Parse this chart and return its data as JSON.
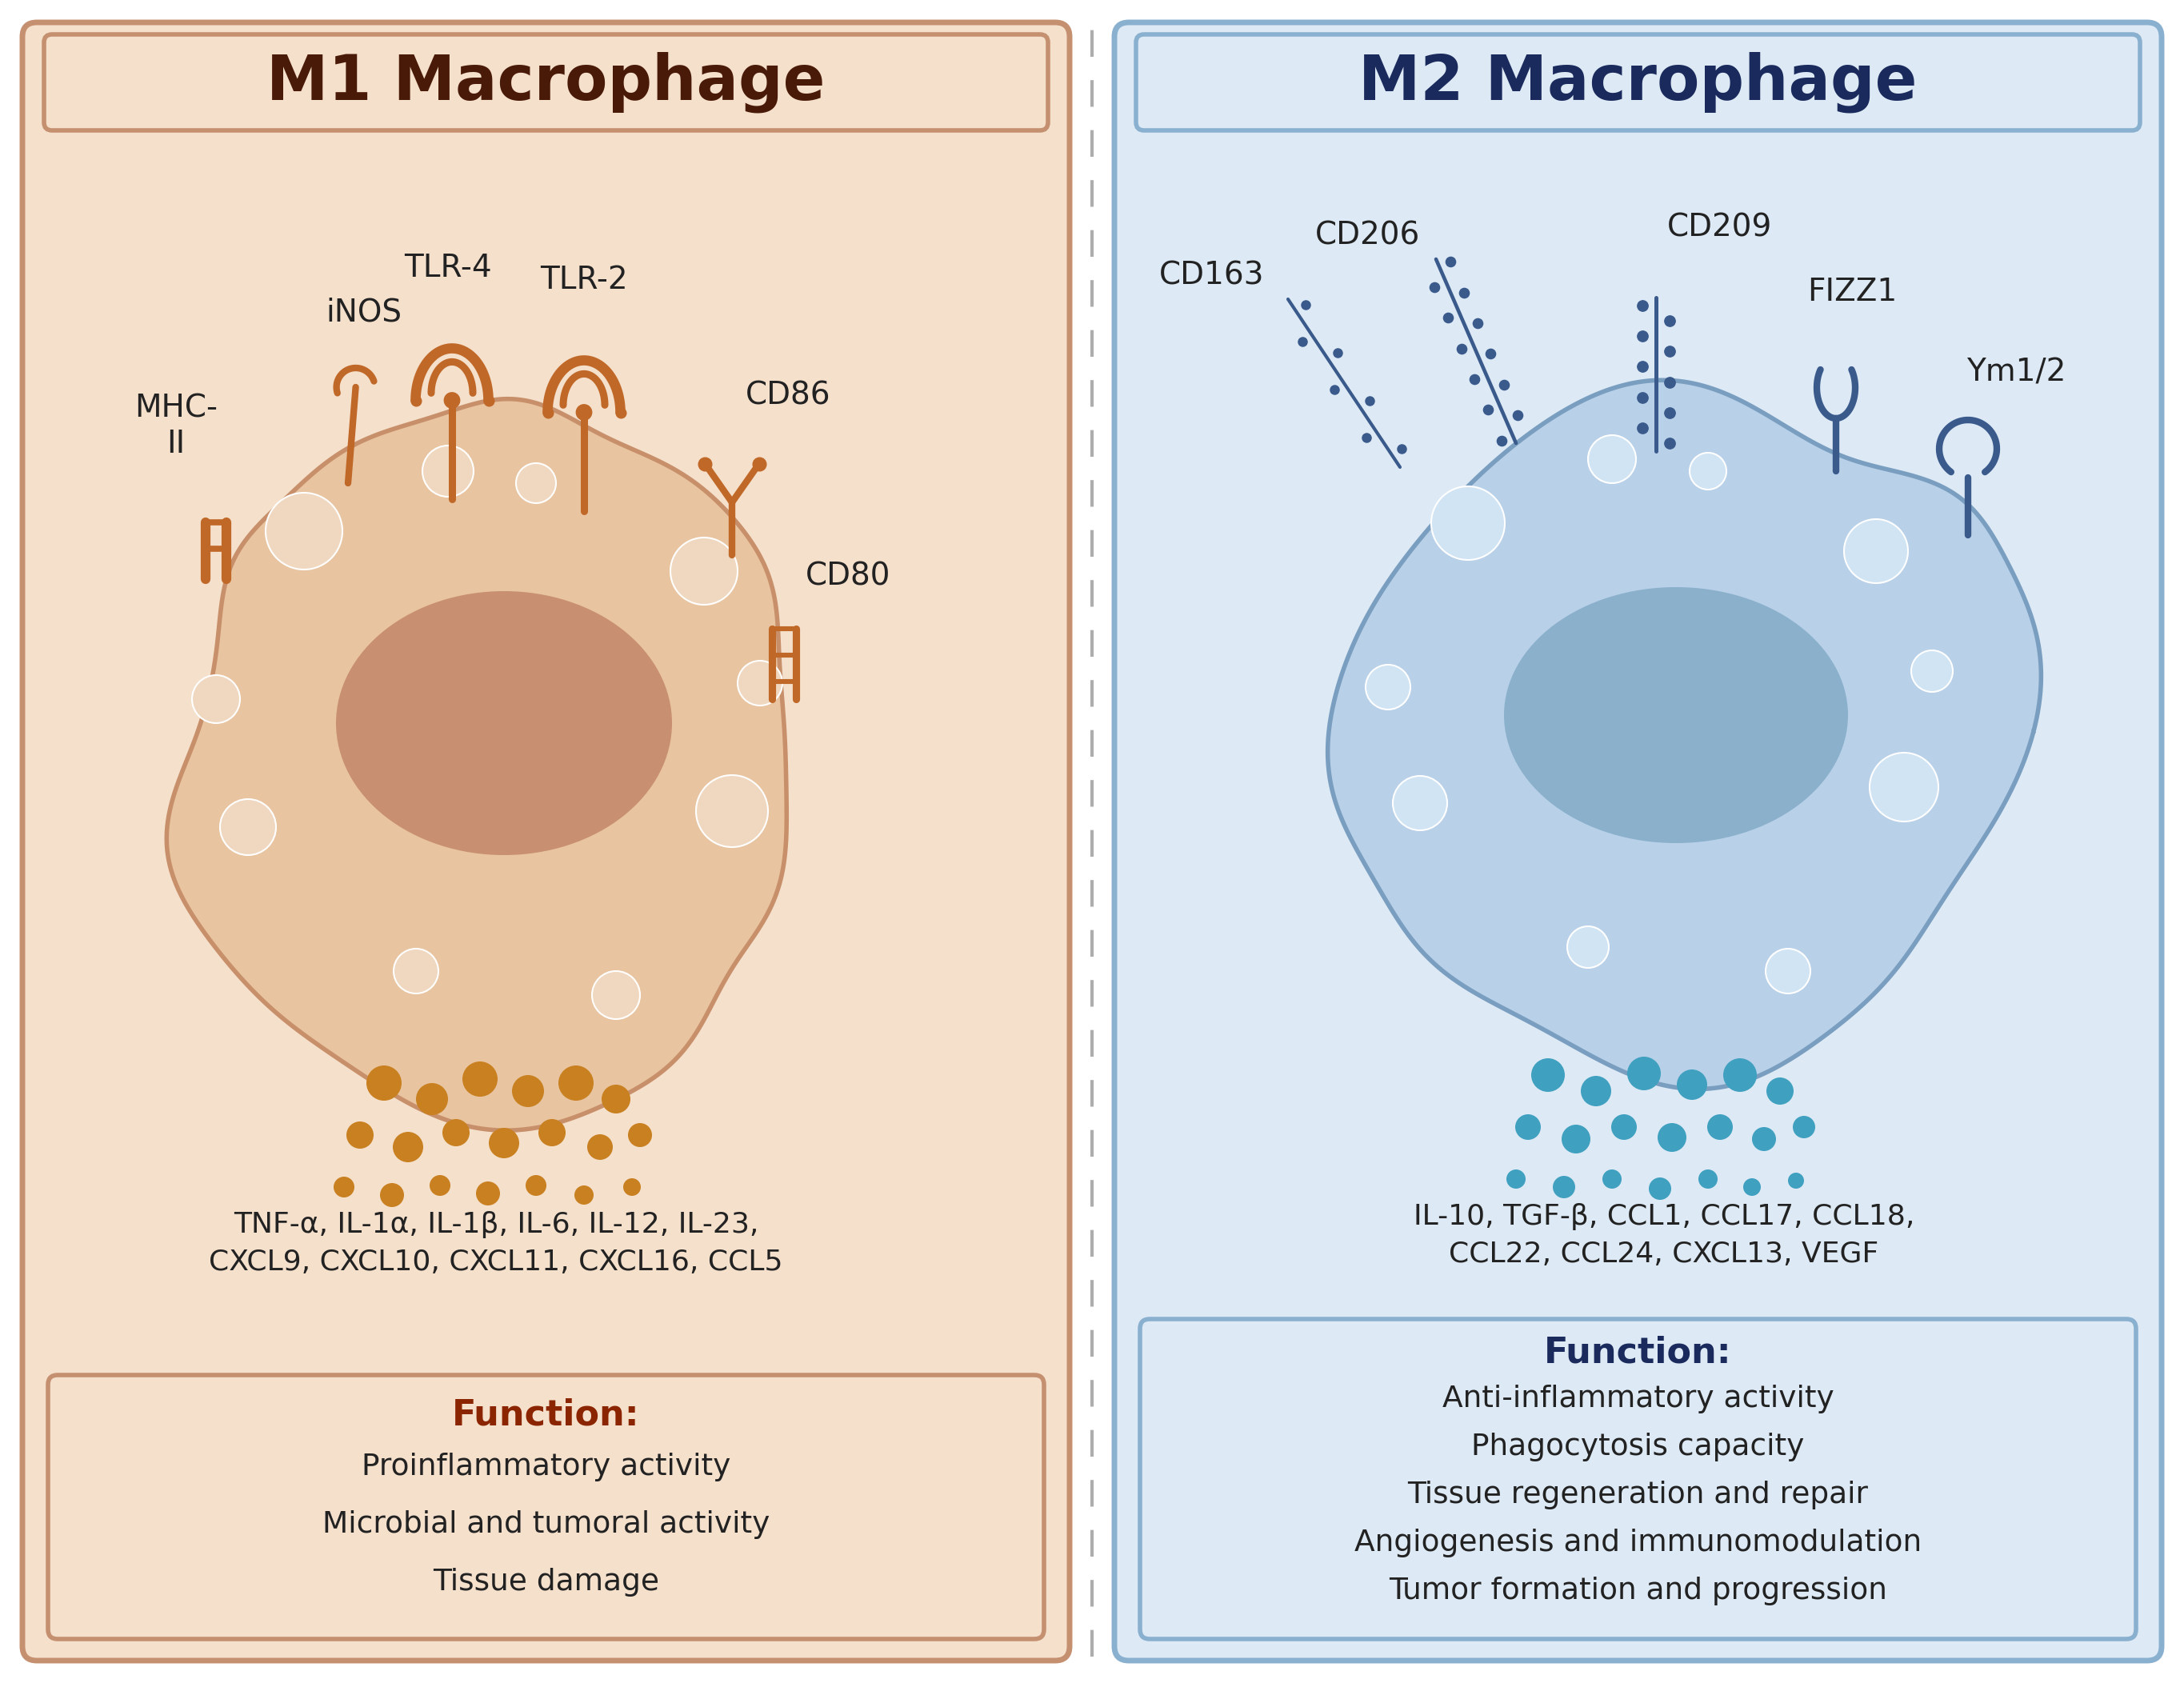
{
  "m1_title": "M1 Macrophage",
  "m2_title": "M2 Macrophage",
  "m1_bg": "#f5e0cc",
  "m1_border": "#c49070",
  "m2_bg": "#ddeaf5",
  "m2_border": "#8ab0d0",
  "m1_title_color": "#4a1a08",
  "m2_title_color": "#1a2a5c",
  "m1_cell_body": "#e8c4a0",
  "m1_cell_edge": "#c8906a",
  "m1_nucleus_color": "#c89070",
  "m1_receptor_color": "#c06828",
  "m2_cell_body": "#b8d0e8",
  "m2_cell_edge": "#7a9ec0",
  "m2_nucleus_color": "#8ab0cc",
  "m2_receptor_color": "#3a5a8c",
  "m1_dot_color": "#c88020",
  "m2_dot_color": "#40a0c0",
  "m1_vacuole_color": "#f0d8c0",
  "m2_vacuole_color": "#d0e4f4",
  "m1_cytokines": "TNF-α, IL-1α, IL-1β, IL-6, IL-12, IL-23,\nCXCL9, CXCL10, CXCL11, CXCL16, CCL5",
  "m2_cytokines": "IL-10, TGF-β, CCL1, CCL17, CCL18,\nCCL22, CCL24, CXCL13, VEGF",
  "m1_function_title": "Function:",
  "m1_functions": [
    "Proinflammatory activity",
    "Microbial and tumoral activity",
    "Tissue damage"
  ],
  "m2_function_title": "Function:",
  "m2_functions": [
    "Anti-inflammatory activity",
    "Phagocytosis capacity",
    "Tissue regeneration and repair",
    "Angiogenesis and immunomodulation",
    "Tumor formation and progression"
  ],
  "m1_func_bg": "#f5e0cc",
  "m2_func_bg": "#ddeaf5",
  "divider_color": "#999999",
  "outer_bg": "#ffffff",
  "text_color_dark": "#222222"
}
